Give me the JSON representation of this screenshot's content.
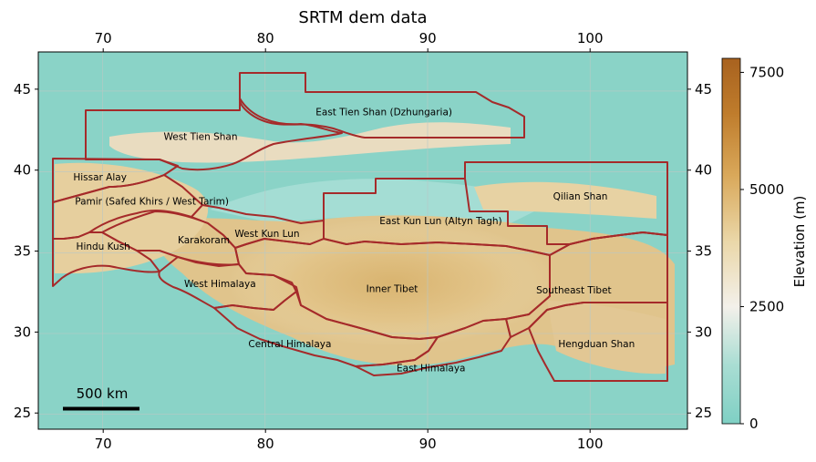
{
  "title": "SRTM dem data",
  "colorbar": {
    "label": "Elevation (m)",
    "ticks": [
      0,
      2500,
      5000,
      7500
    ],
    "tick_labels": [
      "0",
      "2500",
      "5000",
      "7500"
    ],
    "min": 0,
    "max": 7800,
    "colors": {
      "low": "#7fd0c4",
      "mid": "#f3f0ea",
      "high": "#a8621f"
    }
  },
  "axes": {
    "lon_ticks": [
      70,
      80,
      90,
      100
    ],
    "lon_tick_labels": [
      "70",
      "80",
      "90",
      "100"
    ],
    "lat_ticks": [
      25,
      30,
      35,
      40,
      45
    ],
    "lat_tick_labels": [
      "25",
      "30",
      "35",
      "40",
      "45"
    ],
    "lon_range": [
      66,
      106
    ],
    "lat_range": [
      24,
      47.3
    ],
    "grid": true
  },
  "boundary_color": "#a52a2a",
  "regions": [
    {
      "name": "East Tien Shan (Dzhungaria)",
      "lon": 87.3,
      "lat": 43.6
    },
    {
      "name": "West Tien Shan",
      "lon": 76.0,
      "lat": 42.1
    },
    {
      "name": "Hissar Alay",
      "lon": 69.8,
      "lat": 39.6
    },
    {
      "name": "Pamir (Safed Khirs / West Tarim)",
      "lon": 73.0,
      "lat": 38.1
    },
    {
      "name": "Qilian Shan",
      "lon": 99.4,
      "lat": 38.4
    },
    {
      "name": "East Kun Lun (Altyn Tagh)",
      "lon": 90.8,
      "lat": 36.9
    },
    {
      "name": "West Kun Lun",
      "lon": 80.1,
      "lat": 36.1
    },
    {
      "name": "Karakoram",
      "lon": 76.2,
      "lat": 35.7
    },
    {
      "name": "Hindu Kush",
      "lon": 70.0,
      "lat": 35.3
    },
    {
      "name": "West Himalaya",
      "lon": 77.2,
      "lat": 33.0
    },
    {
      "name": "Inner Tibet",
      "lon": 87.8,
      "lat": 32.7
    },
    {
      "name": "Southeast Tibet",
      "lon": 99.0,
      "lat": 32.6
    },
    {
      "name": "Central Himalaya",
      "lon": 81.5,
      "lat": 29.3
    },
    {
      "name": "Hengduan Shan",
      "lon": 100.4,
      "lat": 29.3
    },
    {
      "name": "East Himalaya",
      "lon": 90.2,
      "lat": 27.8
    }
  ],
  "scalebar": {
    "label": "500 km"
  }
}
